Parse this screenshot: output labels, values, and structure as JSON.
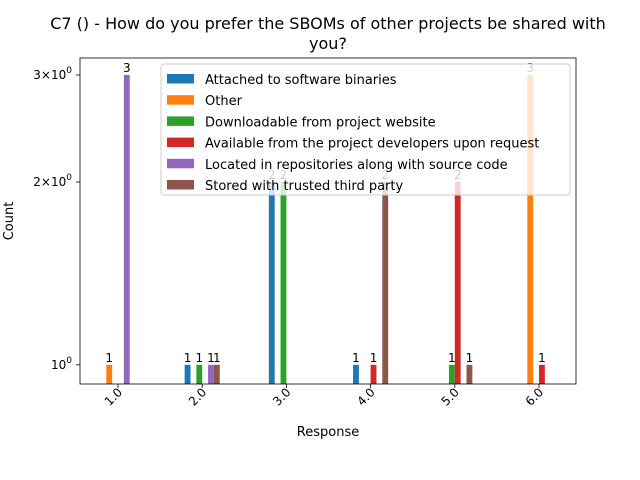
{
  "chart_data": {
    "type": "bar",
    "title_line1": "C7 () - How do you prefer the SBOMs of other projects be shared with",
    "title_line2": "you?",
    "xlabel": "Response",
    "ylabel": "Count",
    "yscale": "log",
    "ylim": [
      0.93,
      3.2
    ],
    "categories": [
      "1.0",
      "2.0",
      "3.0",
      "4.0",
      "5.0",
      "6.0"
    ],
    "yticks": [
      {
        "value": 1,
        "base": "10",
        "exp": "0",
        "coef": ""
      },
      {
        "value": 2,
        "base": "10",
        "exp": "0",
        "coef": "2×"
      },
      {
        "value": 3,
        "base": "10",
        "exp": "0",
        "coef": "3×"
      }
    ],
    "legend_position": "top-right",
    "series": [
      {
        "name": "Attached to software binaries",
        "color": "#1f77b4",
        "values": [
          null,
          1,
          2,
          1,
          null,
          null
        ]
      },
      {
        "name": "Other",
        "color": "#ff7f0e",
        "values": [
          1,
          null,
          null,
          null,
          null,
          3
        ]
      },
      {
        "name": "Downloadable from project website",
        "color": "#2ca02c",
        "values": [
          null,
          1,
          2,
          null,
          1,
          null
        ]
      },
      {
        "name": "Available from the project developers upon request",
        "color": "#d62728",
        "values": [
          null,
          null,
          null,
          1,
          2,
          1
        ]
      },
      {
        "name": "Located in repositories along with source code",
        "color": "#9467bd",
        "values": [
          3,
          1,
          null,
          null,
          null,
          null
        ]
      },
      {
        "name": "Stored with trusted third party",
        "color": "#8c564b",
        "values": [
          null,
          1,
          null,
          2,
          1,
          null
        ]
      }
    ]
  }
}
